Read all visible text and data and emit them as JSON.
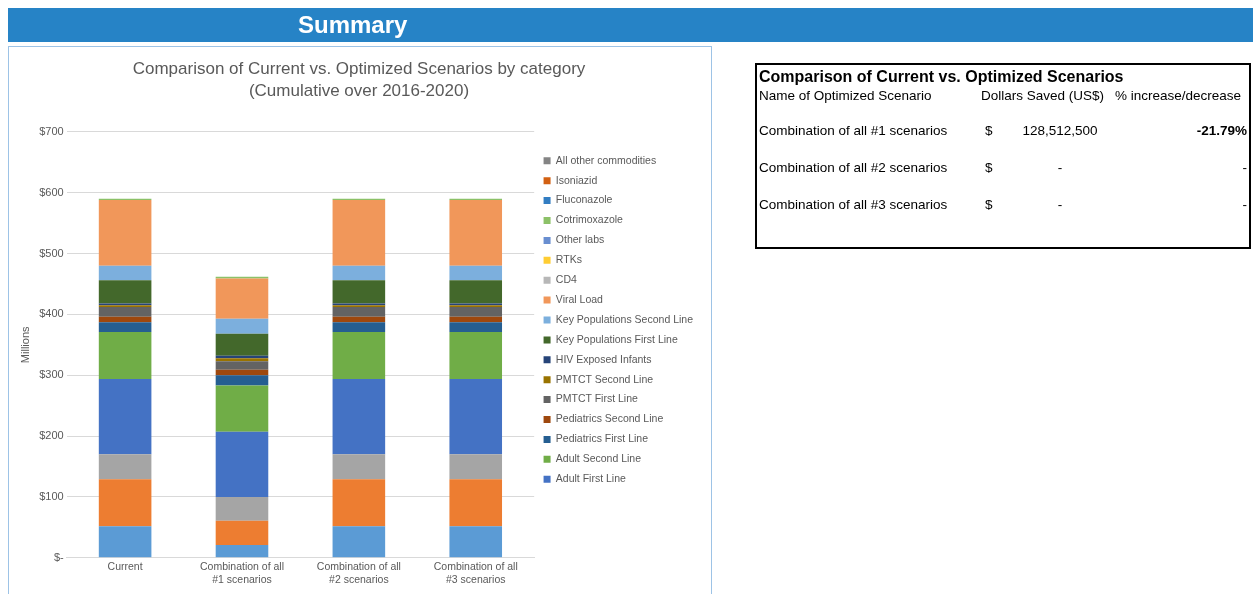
{
  "chart_data": [
    {
      "type": "bar",
      "title": "Comparison of Current vs. Optimized Scenarios by category",
      "subtitle": "(Cumulative over 2016-2020)",
      "annotations": [
        "Summary"
      ],
      "ylabel": "Millions",
      "stacked": true,
      "categories": [
        "Current",
        "Combination of all #1 scenarios",
        "Combination of all #2 scenarios",
        "Combination of all #3 scenarios"
      ],
      "ylim": [
        0,
        700
      ],
      "yticks": [
        {
          "value": 0,
          "label": "$-"
        },
        {
          "value": 100,
          "label": "$100"
        },
        {
          "value": 200,
          "label": "$200"
        },
        {
          "value": 300,
          "label": "$300"
        },
        {
          "value": 400,
          "label": "$400"
        },
        {
          "value": 500,
          "label": "$500"
        },
        {
          "value": 600,
          "label": "$600"
        },
        {
          "value": 700,
          "label": "$700"
        }
      ],
      "grid": "y",
      "legend": "right",
      "series": [
        {
          "color": "#5b9bd5",
          "values": [
            52,
            21,
            52,
            52
          ]
        },
        {
          "color": "#ed7d31",
          "values": [
            77,
            40,
            77,
            77
          ]
        },
        {
          "color": "#a5a5a5",
          "values": [
            41,
            39,
            41,
            41
          ]
        },
        {
          "name": "Adult First Line",
          "color": "#4472c4",
          "values": [
            124,
            107,
            124,
            124
          ]
        },
        {
          "name": "Adult Second Line",
          "color": "#70ad47",
          "values": [
            77,
            76,
            77,
            77
          ]
        },
        {
          "name": "Pediatrics First Line",
          "color": "#255e91",
          "values": [
            16,
            17,
            16,
            16
          ]
        },
        {
          "name": "Pediatrics Second Line",
          "color": "#9e480e",
          "values": [
            9,
            9,
            9,
            9
          ]
        },
        {
          "name": "PMTCT First Line",
          "color": "#636363",
          "values": [
            16,
            14,
            16,
            16
          ]
        },
        {
          "name": "PMTCT Second Line",
          "color": "#997300",
          "values": [
            3,
            5,
            3,
            3
          ]
        },
        {
          "name": "HIV Exposed Infants",
          "color": "#264478",
          "values": [
            3,
            4,
            3,
            3
          ]
        },
        {
          "name": "Key Populations First Line",
          "color": "#43682b",
          "values": [
            38,
            36,
            38,
            38
          ]
        },
        {
          "name": "Key Populations Second Line",
          "color": "#7cafdd",
          "values": [
            24,
            25,
            24,
            24
          ]
        },
        {
          "name": "Viral Load",
          "color": "#f1975a",
          "values": [
            108,
            66,
            108,
            108
          ]
        },
        {
          "name": "CD4",
          "color": "#b7b7b7",
          "values": [
            0,
            0,
            0,
            0
          ]
        },
        {
          "name": "RTKs",
          "color": "#ffcd33",
          "values": [
            0,
            0,
            0,
            0
          ]
        },
        {
          "name": "Other labs",
          "color": "#698ed0",
          "values": [
            0,
            0,
            0,
            0
          ]
        },
        {
          "name": "Cotrimoxazole",
          "color": "#8cc168",
          "values": [
            2,
            3,
            2,
            2
          ]
        },
        {
          "name": "Fluconazole",
          "color": "#327dc2",
          "values": [
            0,
            0,
            0,
            0
          ]
        },
        {
          "name": "Isoniazid",
          "color": "#d26012",
          "values": [
            0,
            0,
            0,
            0
          ]
        },
        {
          "name": "All other commodities",
          "color": "#848484",
          "values": [
            0,
            0,
            0,
            0
          ]
        }
      ]
    },
    {
      "type": "other",
      "title": "Comparison of Current vs. Optimized Scenarios",
      "annotations": [
        "Name of Optimized Scenario",
        "Dollars Saved (US$)",
        "% increase/decrease",
        "Combination of all #1 scenarios",
        "$",
        "128,512,500",
        "-21.79%",
        "Combination of all #2 scenarios",
        "$",
        "-",
        "-",
        "Combination of all #3 scenarios",
        "$",
        "-",
        "-"
      ]
    }
  ]
}
